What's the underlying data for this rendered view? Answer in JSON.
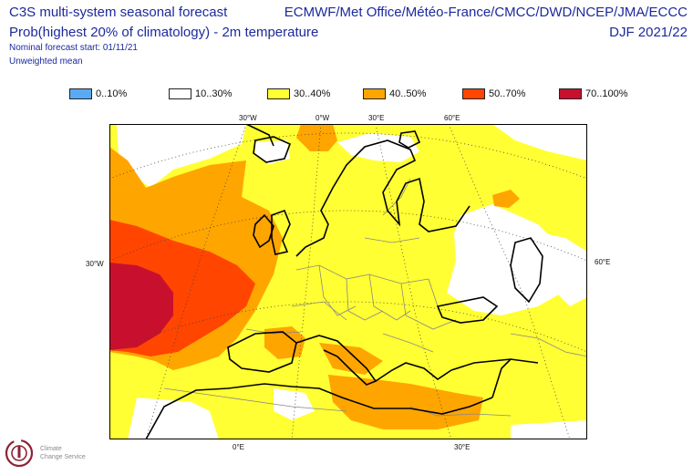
{
  "header": {
    "title_left_1": "C3S multi-system seasonal forecast",
    "title_left_2": "Prob(highest 20% of climatology) - 2m temperature",
    "forecast_start": "Nominal forecast start: 01/11/21",
    "mean_type": "Unweighted mean",
    "title_right_1": "ECMWF/Met Office/Météo-France/CMCC/DWD/NCEP/JMA/ECCC",
    "title_right_2": "DJF 2021/22"
  },
  "legend": [
    {
      "label": "0..10%",
      "color": "#5aa9f5"
    },
    {
      "label": "10..30%",
      "color": "#ffffff"
    },
    {
      "label": "30..40%",
      "color": "#ffff33"
    },
    {
      "label": "40..50%",
      "color": "#ffa500"
    },
    {
      "label": "50..70%",
      "color": "#ff4500"
    },
    {
      "label": "70..100%",
      "color": "#c8102e"
    }
  ],
  "map_labels": {
    "top": [
      "30°W",
      "0°W",
      "30°E",
      "60°E"
    ],
    "left": "30°W",
    "right": "60°E",
    "bottom": [
      "0°E",
      "30°E"
    ]
  },
  "logo": {
    "line1": "Climate",
    "line2": "Change Service"
  }
}
